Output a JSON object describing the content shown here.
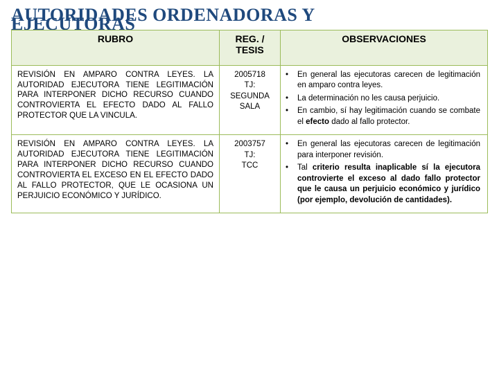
{
  "colors": {
    "title": "#1f497d",
    "header_bg": "#eaf1dd",
    "border": "#9bbb59",
    "text": "#000000",
    "background": "#ffffff"
  },
  "typography": {
    "title_font": "Times New Roman",
    "title_size_pt": 20,
    "body_font": "Arial",
    "body_size_pt": 9,
    "header_size_pt": 11
  },
  "title_line1": "AUTORIDADES ORDENADORAS  Y",
  "title_line2": "EJECUTORAS",
  "table": {
    "type": "table",
    "columns": [
      "RUBRO",
      "REG. / TESIS",
      "OBSERVACIONES"
    ],
    "rows": [
      {
        "rubro": "REVISIÓN EN AMPARO CONTRA LEYES. LA AUTORIDAD EJECUTORA TIENE LEGITIMACIÓN PARA INTERPONER DICHO RECURSO CUANDO CONTROVIERTA EL EFECTO DADO AL FALLO PROTECTOR QUE LA VINCULA.",
        "reg": "2005718 TJ: SEGUNDA SALA",
        "obs": [
          {
            "pre": "En general las ejecutoras carecen de legitimación en amparo contra leyes."
          },
          {
            "pre": "La determinación no les causa perjuicio."
          },
          {
            "pre": "En cambio, sí hay legitimación cuando se combate el ",
            "bold": "efecto",
            "post": " dado al fallo protector."
          }
        ]
      },
      {
        "rubro": "REVISIÓN EN AMPARO CONTRA LEYES. LA AUTORIDAD EJECUTORA TIENE LEGITIMACIÓN PARA INTERPONER DICHO RECURSO CUANDO CONTROVIERTA EL EXCESO EN EL EFECTO DADO AL FALLO PROTECTOR, QUE LE OCASIONA UN PERJUICIO ECONÓMICO Y JURÍDICO.",
        "reg": "2003757 TJ: TCC",
        "obs": [
          {
            "pre": "En general las ejecutoras carecen de legitimación para interponer revisión."
          },
          {
            "pre": "Tal ",
            "bold": "criterio resulta inaplicable sí la ejecutora controvierte el exceso al dado fallo protector que le causa un perjuicio económico y jurídico (por ejemplo, devolución de cantidades)."
          }
        ]
      }
    ]
  }
}
